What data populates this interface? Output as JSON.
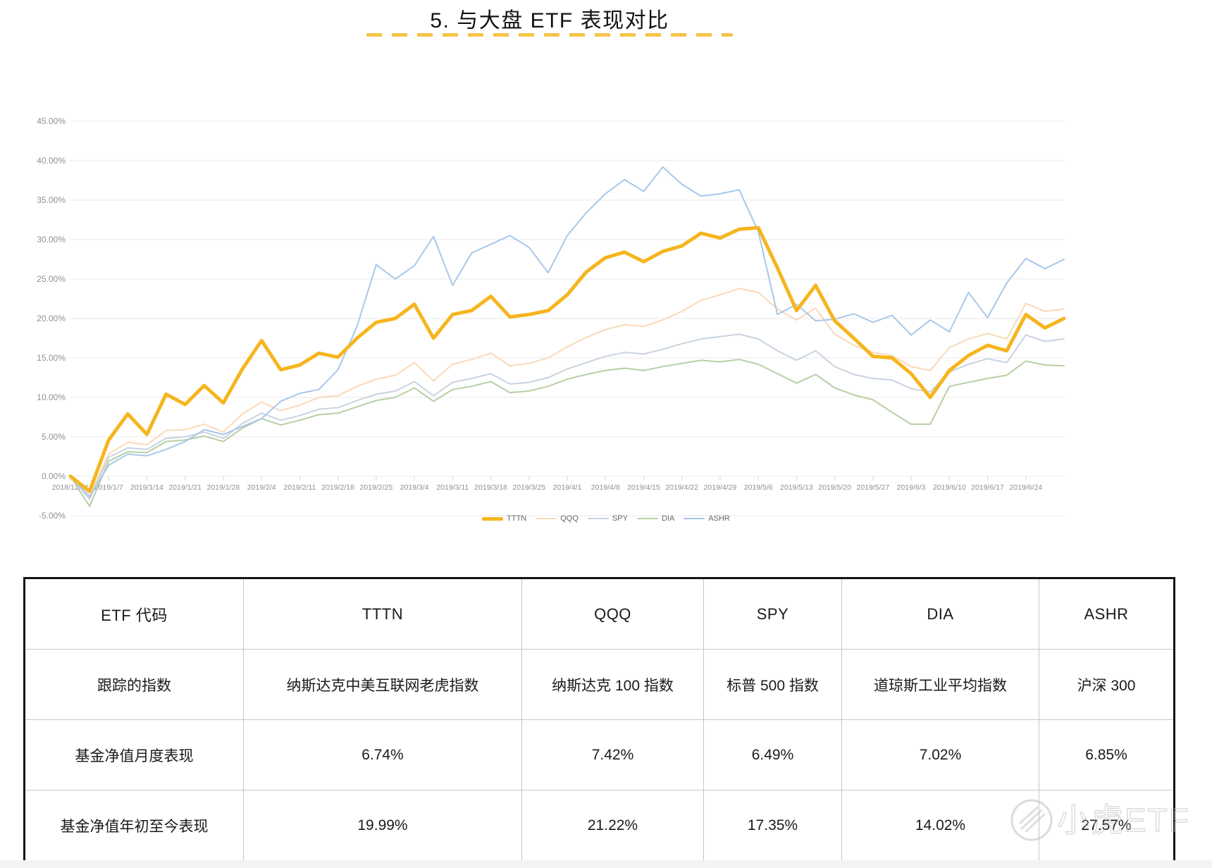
{
  "page": {
    "title": "5.  与大盘 ETF 表现对比"
  },
  "chart_data": {
    "type": "line",
    "title": "",
    "xlabel": "",
    "ylabel": "",
    "ylim": [
      -5,
      45
    ],
    "ytick_step": 5,
    "grid": true,
    "legend_position": "bottom",
    "y_ticks": [
      "45.00%",
      "40.00%",
      "35.00%",
      "30.00%",
      "25.00%",
      "20.00%",
      "15.00%",
      "10.00%",
      "5.00%",
      "0.00%",
      "-5.00%"
    ],
    "x_labels": [
      "2018/12/31",
      "2019/1/7",
      "2019/1/14",
      "2019/1/21",
      "2019/1/28",
      "2019/2/4",
      "2019/2/11",
      "2019/2/18",
      "2019/2/25",
      "2019/3/4",
      "2019/3/11",
      "2019/3/18",
      "2019/3/25",
      "2019/4/1",
      "2019/4/8",
      "2019/4/15",
      "2019/4/22",
      "2019/4/29",
      "2019/5/6",
      "2019/5/13",
      "2019/5/20",
      "2019/5/27",
      "2019/6/3",
      "2019/6/10",
      "2019/6/17",
      "2019/6/24"
    ],
    "points_per_label": 2,
    "series": [
      {
        "name": "TTTN",
        "color": "#F6B51E",
        "width": 5,
        "values": [
          0,
          -1.9,
          4.6,
          7.9,
          5.3,
          10.4,
          9.1,
          11.5,
          9.3,
          13.6,
          17.2,
          13.5,
          14.1,
          15.6,
          15.1,
          17.5,
          19.5,
          20.0,
          21.8,
          17.5,
          20.5,
          21.0,
          22.8,
          20.2,
          20.5,
          21.0,
          23.0,
          25.9,
          27.7,
          28.4,
          27.2,
          28.5,
          29.2,
          30.8,
          30.2,
          31.3,
          31.5,
          26.4,
          21.0,
          24.2,
          19.7,
          17.5,
          15.2,
          15.0,
          13.0,
          10.0,
          13.4,
          15.3,
          16.6,
          15.9,
          20.5,
          18.8,
          20.0
        ]
      },
      {
        "name": "QQQ",
        "color": "#FAD9B8",
        "width": 2,
        "values": [
          0,
          -2.5,
          2.8,
          4.3,
          4.0,
          5.8,
          5.9,
          6.6,
          5.6,
          7.9,
          9.4,
          8.3,
          9.0,
          10.0,
          10.2,
          11.4,
          12.3,
          12.8,
          14.4,
          12.1,
          14.2,
          14.8,
          15.6,
          14.0,
          14.3,
          15.0,
          16.4,
          17.6,
          18.6,
          19.2,
          19.0,
          19.8,
          20.9,
          22.3,
          23.0,
          23.8,
          23.3,
          21.2,
          19.8,
          21.3,
          18.0,
          16.6,
          15.7,
          15.3,
          13.9,
          13.4,
          16.3,
          17.4,
          18.1,
          17.4,
          21.9,
          20.9,
          21.2
        ]
      },
      {
        "name": "SPY",
        "color": "#C9D3E0",
        "width": 2,
        "values": [
          0,
          -2.9,
          2.4,
          3.6,
          3.4,
          4.8,
          5.0,
          5.6,
          4.8,
          6.7,
          8.0,
          7.1,
          7.7,
          8.5,
          8.7,
          9.6,
          10.4,
          10.8,
          12.0,
          10.2,
          11.9,
          12.4,
          13.0,
          11.7,
          11.9,
          12.5,
          13.6,
          14.4,
          15.2,
          15.7,
          15.5,
          16.1,
          16.8,
          17.4,
          17.7,
          18.0,
          17.4,
          15.9,
          14.7,
          15.9,
          13.9,
          12.9,
          12.4,
          12.2,
          11.1,
          10.7,
          13.2,
          14.2,
          14.9,
          14.4,
          17.9,
          17.1,
          17.4
        ]
      },
      {
        "name": "DIA",
        "color": "#B7CFA4",
        "width": 2,
        "values": [
          0,
          -3.8,
          1.9,
          3.1,
          3.0,
          4.4,
          4.6,
          5.1,
          4.4,
          6.1,
          7.3,
          6.5,
          7.1,
          7.8,
          8.0,
          8.8,
          9.6,
          10.0,
          11.2,
          9.5,
          11.0,
          11.4,
          12.0,
          10.6,
          10.8,
          11.4,
          12.3,
          12.9,
          13.4,
          13.7,
          13.4,
          13.9,
          14.3,
          14.7,
          14.5,
          14.8,
          14.2,
          13.0,
          11.8,
          12.9,
          11.2,
          10.3,
          9.7,
          8.1,
          6.6,
          6.6,
          11.4,
          11.9,
          12.4,
          12.8,
          14.6,
          14.1,
          14.0
        ]
      },
      {
        "name": "ASHR",
        "color": "#A9C7E9",
        "width": 2,
        "values": [
          0,
          -2.6,
          1.4,
          2.8,
          2.6,
          3.4,
          4.4,
          5.9,
          5.3,
          6.3,
          7.3,
          9.5,
          10.5,
          11.0,
          13.5,
          19.0,
          26.8,
          25.0,
          26.7,
          30.4,
          24.2,
          28.3,
          29.4,
          30.5,
          29.0,
          25.8,
          30.5,
          33.4,
          35.8,
          37.6,
          36.1,
          39.2,
          37.0,
          35.5,
          35.8,
          36.3,
          31.0,
          20.5,
          21.8,
          19.7,
          19.9,
          20.6,
          19.5,
          20.4,
          17.9,
          19.8,
          18.3,
          23.3,
          20.1,
          24.5,
          27.6,
          26.3,
          27.5
        ]
      }
    ]
  },
  "table": {
    "rows": [
      [
        "ETF 代码",
        "TTTN",
        "QQQ",
        "SPY",
        "DIA",
        "ASHR"
      ],
      [
        "跟踪的指数",
        "纳斯达克中美互联网老虎指数",
        "纳斯达克 100 指数",
        "标普 500 指数",
        "道琼斯工业平均指数",
        "沪深 300"
      ],
      [
        "基金净值月度表现",
        "6.74%",
        "7.42%",
        "6.49%",
        "7.02%",
        "6.85%"
      ],
      [
        "基金净值年初至今表现",
        "19.99%",
        "21.22%",
        "17.35%",
        "14.02%",
        "27.57%"
      ]
    ]
  },
  "watermark": {
    "text": "小虎ETF"
  }
}
